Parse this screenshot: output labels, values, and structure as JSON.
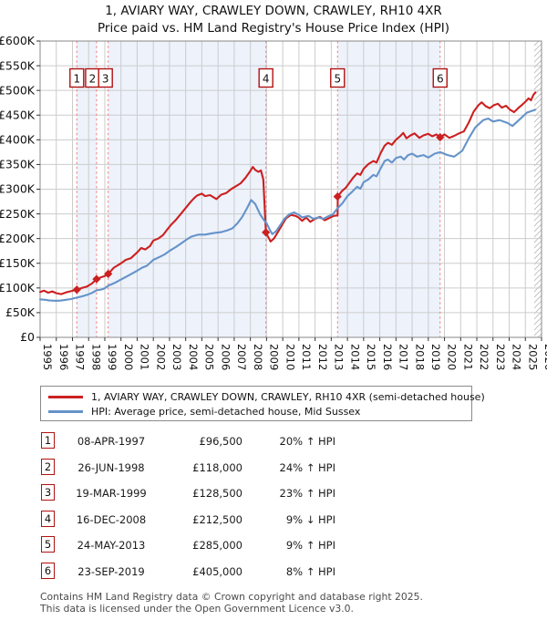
{
  "title_line1": "1, AVIARY WAY, CRAWLEY DOWN, CRAWLEY, RH10 4XR",
  "title_line2": "Price paid vs. HM Land Registry's House Price Index (HPI)",
  "footer_line1": "Contains HM Land Registry data © Crown copyright and database right 2025.",
  "footer_line2": "This data is licensed under the Open Government Licence v3.0.",
  "transactions": [
    {
      "num": "1",
      "date": "08-APR-1997",
      "price": "£96,500",
      "hpi": "20% ↑ HPI"
    },
    {
      "num": "2",
      "date": "26-JUN-1998",
      "price": "£118,000",
      "hpi": "24% ↑ HPI"
    },
    {
      "num": "3",
      "date": "19-MAR-1999",
      "price": "£128,500",
      "hpi": "23% ↑ HPI"
    },
    {
      "num": "4",
      "date": "16-DEC-2008",
      "price": "£212,500",
      "hpi": "9% ↓ HPI"
    },
    {
      "num": "5",
      "date": "24-MAY-2013",
      "price": "£285,000",
      "hpi": "9% ↑ HPI"
    },
    {
      "num": "6",
      "date": "23-SEP-2019",
      "price": "£405,000",
      "hpi": "8% ↑ HPI"
    }
  ],
  "chart_data": {
    "type": "line",
    "title": "1, AVIARY WAY, CRAWLEY DOWN, CRAWLEY, RH10 4XR — Price paid vs. HPI",
    "xlabel": "",
    "ylabel": "Price",
    "xlim": [
      1995,
      2026
    ],
    "ylim_k": [
      0,
      600
    ],
    "grid": true,
    "legend_position": "below",
    "x_ticks": [
      1995,
      1996,
      1997,
      1998,
      1999,
      2000,
      2001,
      2002,
      2003,
      2004,
      2005,
      2006,
      2007,
      2008,
      2009,
      2010,
      2011,
      2012,
      2013,
      2014,
      2015,
      2016,
      2017,
      2018,
      2019,
      2020,
      2021,
      2022,
      2023,
      2024,
      2025,
      2026
    ],
    "y_ticks": [
      [
        0,
        "£0"
      ],
      [
        50,
        "£50K"
      ],
      [
        100,
        "£100K"
      ],
      [
        150,
        "£150K"
      ],
      [
        200,
        "£200K"
      ],
      [
        250,
        "£250K"
      ],
      [
        300,
        "£300K"
      ],
      [
        350,
        "£350K"
      ],
      [
        400,
        "£400K"
      ],
      [
        450,
        "£450K"
      ],
      [
        500,
        "£500K"
      ],
      [
        550,
        "£550K"
      ],
      [
        600,
        "£600K"
      ]
    ],
    "colors": {
      "property_line": "#cc2020",
      "hpi_line": "#6593c9",
      "ownership_band": "#edf2fb",
      "gridline": "#cccccc",
      "spine": "#8a8a8a",
      "sale_dash": "#f08080",
      "marker_box_border": "#b01111",
      "hatch": "#b8b8b8",
      "tick_text": "#111111"
    },
    "ownership_bands": [
      [
        1997.27,
        1998.49
      ],
      [
        1999.21,
        2008.96
      ],
      [
        2013.39,
        2019.73
      ]
    ],
    "future_hatch_start": 2025.55,
    "sale_markers": [
      {
        "label": "1",
        "year": 1997.27,
        "price_k": 96.5,
        "box_dx": 0
      },
      {
        "label": "2",
        "year": 1998.49,
        "price_k": 118,
        "box_dx": -4.5
      },
      {
        "label": "3",
        "year": 1999.21,
        "price_k": 128.5,
        "box_dx": -3
      },
      {
        "label": "4",
        "year": 2008.96,
        "price_k": 212.5,
        "box_dx": 0
      },
      {
        "label": "5",
        "year": 2013.39,
        "price_k": 285,
        "box_dx": 0
      },
      {
        "label": "6",
        "year": 2019.73,
        "price_k": 405,
        "box_dx": 0
      }
    ],
    "series": [
      {
        "name": "1, AVIARY WAY, CRAWLEY DOWN, CRAWLEY, RH10 4XR (semi-detached house)",
        "color": "#cc2020",
        "points": [
          [
            1995.0,
            92
          ],
          [
            1995.25,
            94.5
          ],
          [
            1995.5,
            90.5
          ],
          [
            1995.75,
            93
          ],
          [
            1996.0,
            89.5
          ],
          [
            1996.3,
            87.5
          ],
          [
            1996.6,
            91
          ],
          [
            1996.9,
            93.5
          ],
          [
            1997.27,
            96.5
          ],
          [
            1997.6,
            100
          ],
          [
            1997.9,
            103
          ],
          [
            1998.2,
            109
          ],
          [
            1998.49,
            118
          ],
          [
            1998.75,
            121.5
          ],
          [
            1999.0,
            124
          ],
          [
            1999.21,
            128.5
          ],
          [
            1999.56,
            141
          ],
          [
            2000.0,
            150
          ],
          [
            2000.3,
            157
          ],
          [
            2000.6,
            160
          ],
          [
            2001.0,
            172
          ],
          [
            2001.25,
            181
          ],
          [
            2001.5,
            178
          ],
          [
            2001.8,
            185
          ],
          [
            2002.0,
            196
          ],
          [
            2002.3,
            200
          ],
          [
            2002.6,
            207
          ],
          [
            2002.85,
            218
          ],
          [
            2003.1,
            228
          ],
          [
            2003.4,
            238
          ],
          [
            2003.7,
            250
          ],
          [
            2004.0,
            262
          ],
          [
            2004.3,
            274
          ],
          [
            2004.5,
            281
          ],
          [
            2004.7,
            287
          ],
          [
            2005.0,
            291
          ],
          [
            2005.2,
            286
          ],
          [
            2005.5,
            288
          ],
          [
            2005.9,
            280
          ],
          [
            2006.2,
            289
          ],
          [
            2006.5,
            292
          ],
          [
            2006.8,
            300
          ],
          [
            2007.1,
            306
          ],
          [
            2007.4,
            312
          ],
          [
            2007.7,
            323
          ],
          [
            2008.0,
            337
          ],
          [
            2008.15,
            345
          ],
          [
            2008.3,
            339
          ],
          [
            2008.5,
            335
          ],
          [
            2008.65,
            338
          ],
          [
            2008.8,
            320
          ],
          [
            2008.96,
            212.5
          ],
          [
            2009.1,
            203
          ],
          [
            2009.25,
            194
          ],
          [
            2009.45,
            200
          ],
          [
            2009.7,
            213
          ],
          [
            2009.95,
            227
          ],
          [
            2010.2,
            241
          ],
          [
            2010.5,
            248
          ],
          [
            2010.8,
            246
          ],
          [
            2011.0,
            242
          ],
          [
            2011.2,
            236
          ],
          [
            2011.45,
            243
          ],
          [
            2011.7,
            234
          ],
          [
            2012.0,
            240
          ],
          [
            2012.3,
            244
          ],
          [
            2012.6,
            237
          ],
          [
            2012.9,
            242
          ],
          [
            2013.15,
            246
          ],
          [
            2013.39,
            247
          ],
          [
            2013.4,
            285
          ],
          [
            2013.65,
            296
          ],
          [
            2013.9,
            303
          ],
          [
            2014.1,
            312
          ],
          [
            2014.35,
            323
          ],
          [
            2014.6,
            332
          ],
          [
            2014.8,
            329
          ],
          [
            2015.0,
            341
          ],
          [
            2015.3,
            351
          ],
          [
            2015.6,
            357
          ],
          [
            2015.8,
            354
          ],
          [
            2016.05,
            373
          ],
          [
            2016.3,
            388
          ],
          [
            2016.5,
            394
          ],
          [
            2016.75,
            390
          ],
          [
            2017.0,
            400
          ],
          [
            2017.25,
            407
          ],
          [
            2017.45,
            414
          ],
          [
            2017.65,
            403
          ],
          [
            2017.9,
            409
          ],
          [
            2018.15,
            413
          ],
          [
            2018.45,
            404
          ],
          [
            2018.7,
            409
          ],
          [
            2019.0,
            412
          ],
          [
            2019.25,
            407
          ],
          [
            2019.5,
            411
          ],
          [
            2019.73,
            405
          ],
          [
            2020.0,
            411
          ],
          [
            2020.3,
            404
          ],
          [
            2020.6,
            408
          ],
          [
            2020.9,
            413
          ],
          [
            2021.2,
            417
          ],
          [
            2021.5,
            435
          ],
          [
            2021.8,
            457
          ],
          [
            2022.1,
            470
          ],
          [
            2022.3,
            476
          ],
          [
            2022.55,
            468
          ],
          [
            2022.8,
            464
          ],
          [
            2023.05,
            470
          ],
          [
            2023.3,
            473
          ],
          [
            2023.55,
            465
          ],
          [
            2023.8,
            469
          ],
          [
            2024.05,
            461
          ],
          [
            2024.3,
            456
          ],
          [
            2024.55,
            464
          ],
          [
            2024.8,
            471
          ],
          [
            2025.0,
            477
          ],
          [
            2025.2,
            484
          ],
          [
            2025.35,
            480
          ],
          [
            2025.5,
            491
          ],
          [
            2025.62,
            496
          ]
        ]
      },
      {
        "name": "HPI: Average price, semi-detached house, Mid Sussex",
        "color": "#6593c9",
        "points": [
          [
            1995.0,
            77
          ],
          [
            1995.3,
            76
          ],
          [
            1995.6,
            74.5
          ],
          [
            1996.0,
            74
          ],
          [
            1996.3,
            74.5
          ],
          [
            1996.6,
            76
          ],
          [
            1996.9,
            77.5
          ],
          [
            1997.27,
            80.4
          ],
          [
            1997.6,
            83
          ],
          [
            1997.9,
            86
          ],
          [
            1998.2,
            90
          ],
          [
            1998.49,
            95.2
          ],
          [
            1998.8,
            97
          ],
          [
            1999.0,
            99.5
          ],
          [
            1999.21,
            104.5
          ],
          [
            1999.6,
            110
          ],
          [
            2000.0,
            117
          ],
          [
            2000.5,
            126
          ],
          [
            2001.0,
            135
          ],
          [
            2001.3,
            141
          ],
          [
            2001.6,
            145
          ],
          [
            2002.0,
            157
          ],
          [
            2002.4,
            163
          ],
          [
            2002.7,
            168
          ],
          [
            2003.0,
            175
          ],
          [
            2003.4,
            183
          ],
          [
            2003.8,
            192
          ],
          [
            2004.1,
            199
          ],
          [
            2004.35,
            204
          ],
          [
            2004.8,
            208
          ],
          [
            2005.2,
            208
          ],
          [
            2005.7,
            211
          ],
          [
            2006.2,
            213
          ],
          [
            2006.6,
            217
          ],
          [
            2006.9,
            221
          ],
          [
            2007.2,
            231
          ],
          [
            2007.5,
            244
          ],
          [
            2007.8,
            262
          ],
          [
            2008.05,
            278
          ],
          [
            2008.3,
            270
          ],
          [
            2008.6,
            249
          ],
          [
            2008.85,
            237
          ],
          [
            2009.0,
            231
          ],
          [
            2009.2,
            218
          ],
          [
            2009.35,
            209
          ],
          [
            2009.6,
            215
          ],
          [
            2009.9,
            230
          ],
          [
            2010.1,
            240
          ],
          [
            2010.4,
            249
          ],
          [
            2010.7,
            253
          ],
          [
            2011.0,
            248
          ],
          [
            2011.2,
            243
          ],
          [
            2011.6,
            246
          ],
          [
            2011.9,
            240
          ],
          [
            2012.2,
            243
          ],
          [
            2012.5,
            240
          ],
          [
            2012.8,
            245
          ],
          [
            2013.1,
            249
          ],
          [
            2013.39,
            261.5
          ],
          [
            2013.7,
            272
          ],
          [
            2014.0,
            286
          ],
          [
            2014.3,
            295
          ],
          [
            2014.6,
            305
          ],
          [
            2014.8,
            301
          ],
          [
            2015.0,
            314
          ],
          [
            2015.3,
            320
          ],
          [
            2015.6,
            329
          ],
          [
            2015.8,
            326
          ],
          [
            2016.05,
            342
          ],
          [
            2016.3,
            357
          ],
          [
            2016.5,
            360
          ],
          [
            2016.75,
            354
          ],
          [
            2017.0,
            363
          ],
          [
            2017.3,
            366
          ],
          [
            2017.5,
            360
          ],
          [
            2017.75,
            369
          ],
          [
            2018.0,
            372
          ],
          [
            2018.3,
            366
          ],
          [
            2018.7,
            369
          ],
          [
            2019.0,
            364
          ],
          [
            2019.4,
            372
          ],
          [
            2019.73,
            375
          ],
          [
            2020.2,
            369
          ],
          [
            2020.6,
            366
          ],
          [
            2021.1,
            378
          ],
          [
            2021.5,
            403
          ],
          [
            2021.9,
            425
          ],
          [
            2022.4,
            440
          ],
          [
            2022.7,
            443
          ],
          [
            2023.0,
            437
          ],
          [
            2023.4,
            440
          ],
          [
            2023.9,
            434
          ],
          [
            2024.2,
            428
          ],
          [
            2024.6,
            440
          ],
          [
            2025.1,
            455
          ],
          [
            2025.45,
            459
          ],
          [
            2025.62,
            461
          ]
        ]
      }
    ]
  }
}
